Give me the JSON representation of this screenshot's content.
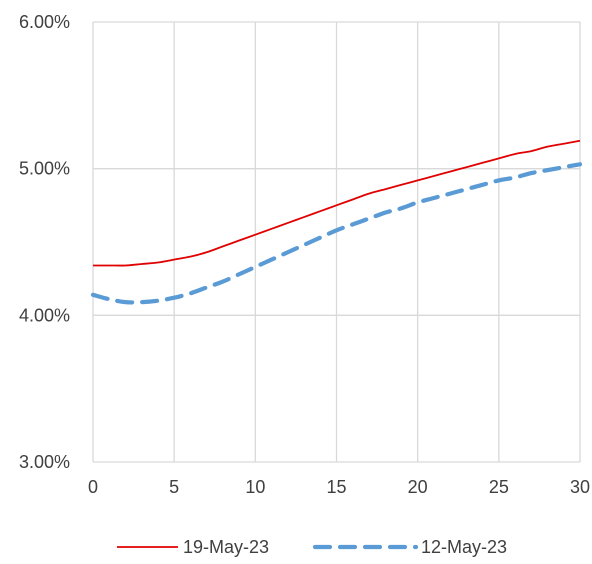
{
  "chart_data": {
    "type": "line",
    "title": "",
    "xlabel": "",
    "ylabel": "",
    "xlim": [
      0,
      30
    ],
    "ylim": [
      3.0,
      6.0
    ],
    "x_ticks": [
      0,
      5,
      10,
      15,
      20,
      25,
      30
    ],
    "x_tick_labels": [
      "0",
      "5",
      "10",
      "15",
      "20",
      "25",
      "30"
    ],
    "y_ticks": [
      3.0,
      4.0,
      5.0,
      6.0
    ],
    "y_tick_labels": [
      "3.00%",
      "4.00%",
      "5.00%",
      "6.00%"
    ],
    "grid": true,
    "legend_position": "bottom",
    "series": [
      {
        "name": "19-May-23",
        "color": "#e00000",
        "style": "solid",
        "x": [
          0,
          1,
          2,
          3,
          4,
          5,
          6,
          7,
          8,
          9,
          10,
          11,
          12,
          13,
          14,
          15,
          16,
          17,
          18,
          19,
          20,
          21,
          22,
          23,
          24,
          25,
          26,
          27,
          28,
          29,
          30
        ],
        "y": [
          4.34,
          4.34,
          4.34,
          4.35,
          4.36,
          4.38,
          4.4,
          4.43,
          4.47,
          4.51,
          4.55,
          4.59,
          4.63,
          4.67,
          4.71,
          4.75,
          4.79,
          4.83,
          4.86,
          4.89,
          4.92,
          4.95,
          4.98,
          5.01,
          5.04,
          5.07,
          5.1,
          5.12,
          5.15,
          5.17,
          5.19
        ]
      },
      {
        "name": "12-May-23",
        "color": "#5b9bd5",
        "style": "dashed",
        "x": [
          0,
          1,
          2,
          3,
          4,
          5,
          6,
          7,
          8,
          9,
          10,
          11,
          12,
          13,
          14,
          15,
          16,
          17,
          18,
          19,
          20,
          21,
          22,
          23,
          24,
          25,
          26,
          27,
          28,
          29,
          30
        ],
        "y": [
          4.14,
          4.11,
          4.09,
          4.09,
          4.1,
          4.12,
          4.15,
          4.19,
          4.23,
          4.28,
          4.33,
          4.38,
          4.43,
          4.48,
          4.53,
          4.58,
          4.62,
          4.66,
          4.7,
          4.73,
          4.77,
          4.8,
          4.83,
          4.86,
          4.89,
          4.92,
          4.94,
          4.97,
          4.99,
          5.01,
          5.03
        ]
      }
    ]
  }
}
